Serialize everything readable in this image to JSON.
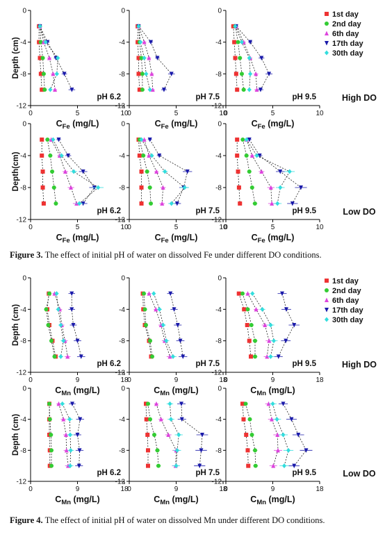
{
  "figures": [
    {
      "id": "fig3",
      "caption_label": "Figure 3.",
      "caption_text": " The effect of initial pH of water on dissolved Fe under different DO conditions.",
      "xlabel_main": "C",
      "xlabel_sub": "Fe",
      "xlabel_unit": " (mg/L)",
      "ylabels": [
        "Depth (cm)",
        "Depth(cm)"
      ],
      "yticks": [
        "0",
        "-4",
        "-8",
        "-12"
      ],
      "xticks": [
        "0",
        "5",
        "10"
      ],
      "row_labels": [
        "High DO",
        "Low DO"
      ],
      "ph_labels": [
        "pH 6.2",
        "pH 7.5",
        "pH 9.5"
      ]
    },
    {
      "id": "fig4",
      "caption_label": "Figure 4.",
      "caption_text": " The effect of initial pH of water on dissolved Mn under different DO conditions.",
      "xlabel_main": "C",
      "xlabel_sub": "Mn",
      "xlabel_unit": " (mg/L)",
      "ylabels": [
        "Depth (cm)",
        "Depth (cm)"
      ],
      "yticks": [
        "0",
        "-4",
        "-8",
        "-12"
      ],
      "xticks": [
        "0",
        "9",
        "18"
      ],
      "row_labels": [
        "High DO",
        "Low DO"
      ],
      "ph_labels": [
        "pH 6.2",
        "pH 7.5",
        "pH 9.5"
      ]
    }
  ],
  "legend": [
    {
      "name": "1st day",
      "color": "#ee3333",
      "marker": "square"
    },
    {
      "name": "2nd day",
      "color": "#33cc33",
      "marker": "circle"
    },
    {
      "name": "6th day",
      "color": "#dd44dd",
      "marker": "triangle-up"
    },
    {
      "name": "17th day",
      "color": "#1a1aaa",
      "marker": "triangle-down"
    },
    {
      "name": "30th day",
      "color": "#33dddd",
      "marker": "diamond"
    }
  ],
  "chart_data": [
    {
      "type": "scatter",
      "figure": "fig3",
      "panel": "pH 6.2",
      "condition": "High DO",
      "xlim": [
        0,
        10
      ],
      "ylim": [
        -12,
        0
      ],
      "depth": [
        -2,
        -4,
        -6,
        -8,
        -10
      ],
      "series": [
        {
          "name": "1st day",
          "values": [
            0.9,
            0.9,
            1.0,
            1.1,
            1.2
          ]
        },
        {
          "name": "2nd day",
          "values": [
            1.0,
            1.1,
            1.3,
            1.4,
            1.5
          ]
        },
        {
          "name": "6th day",
          "values": [
            1.0,
            1.4,
            2.0,
            2.4,
            2.6
          ]
        },
        {
          "name": "17th day",
          "values": [
            1.0,
            1.8,
            2.7,
            3.6,
            4.4
          ]
        },
        {
          "name": "30th day",
          "values": [
            1.0,
            1.6,
            2.9,
            2.8,
            2.1
          ]
        }
      ]
    },
    {
      "type": "scatter",
      "figure": "fig3",
      "panel": "pH 7.5",
      "condition": "High DO",
      "xlim": [
        0,
        10
      ],
      "ylim": [
        -12,
        0
      ],
      "depth": [
        -2,
        -4,
        -6,
        -8,
        -10
      ],
      "series": [
        {
          "name": "1st day",
          "values": [
            0.9,
            0.9,
            1.0,
            1.0,
            1.1
          ]
        },
        {
          "name": "2nd day",
          "values": [
            1.0,
            1.1,
            1.3,
            1.4,
            1.4
          ]
        },
        {
          "name": "6th day",
          "values": [
            1.0,
            1.6,
            2.1,
            2.4,
            2.5
          ]
        },
        {
          "name": "17th day",
          "values": [
            1.0,
            2.3,
            3.0,
            4.5,
            3.7
          ]
        },
        {
          "name": "30th day",
          "values": [
            1.0,
            1.2,
            1.6,
            1.8,
            2.2
          ]
        }
      ]
    },
    {
      "type": "scatter",
      "figure": "fig3",
      "panel": "pH 9.5",
      "condition": "High DO",
      "xlim": [
        0,
        10
      ],
      "ylim": [
        -12,
        0
      ],
      "depth": [
        -2,
        -4,
        -6,
        -8,
        -10
      ],
      "series": [
        {
          "name": "1st day",
          "values": [
            0.8,
            0.9,
            1.0,
            1.1,
            1.2
          ]
        },
        {
          "name": "2nd day",
          "values": [
            1.0,
            1.3,
            1.5,
            1.7,
            1.9
          ]
        },
        {
          "name": "6th day",
          "values": [
            1.1,
            1.9,
            2.6,
            3.2,
            3.3
          ]
        },
        {
          "name": "17th day",
          "values": [
            1.1,
            2.6,
            3.8,
            4.6,
            3.7
          ]
        },
        {
          "name": "30th day",
          "values": [
            1.0,
            1.7,
            2.5,
            2.6,
            2.5
          ]
        }
      ]
    },
    {
      "type": "scatter",
      "figure": "fig3",
      "panel": "pH 6.2",
      "condition": "Low DO",
      "xlim": [
        0,
        10
      ],
      "ylim": [
        -12,
        0
      ],
      "depth": [
        -2,
        -4,
        -6,
        -8,
        -10
      ],
      "series": [
        {
          "name": "1st day",
          "values": [
            1.2,
            1.2,
            1.3,
            1.3,
            1.4
          ]
        },
        {
          "name": "2nd day",
          "values": [
            1.8,
            2.1,
            2.3,
            2.5,
            2.7
          ]
        },
        {
          "name": "6th day",
          "values": [
            2.2,
            3.1,
            3.7,
            4.3,
            4.9
          ]
        },
        {
          "name": "17th day",
          "values": [
            3.0,
            4.0,
            5.6,
            6.8,
            5.6
          ]
        },
        {
          "name": "30th day",
          "values": [
            2.4,
            3.3,
            4.6,
            7.2,
            5.2
          ]
        }
      ]
    },
    {
      "type": "scatter",
      "figure": "fig3",
      "panel": "pH 7.5",
      "condition": "Low DO",
      "xlim": [
        0,
        10
      ],
      "ylim": [
        -12,
        0
      ],
      "depth": [
        -2,
        -4,
        -6,
        -8,
        -10
      ],
      "series": [
        {
          "name": "1st day",
          "values": [
            1.0,
            1.1,
            1.3,
            1.3,
            1.3
          ]
        },
        {
          "name": "2nd day",
          "values": [
            1.1,
            1.5,
            1.9,
            2.2,
            2.3
          ]
        },
        {
          "name": "6th day",
          "values": [
            1.6,
            2.1,
            2.9,
            3.6,
            3.5
          ]
        },
        {
          "name": "17th day",
          "values": [
            2.2,
            3.2,
            6.2,
            5.8,
            5.1
          ]
        },
        {
          "name": "30th day",
          "values": [
            1.3,
            2.4,
            3.8,
            5.9,
            4.5
          ]
        }
      ]
    },
    {
      "type": "scatter",
      "figure": "fig3",
      "panel": "pH 9.5",
      "condition": "Low DO",
      "xlim": [
        0,
        10
      ],
      "ylim": [
        -12,
        0
      ],
      "depth": [
        -2,
        -4,
        -6,
        -8,
        -10
      ],
      "series": [
        {
          "name": "1st day",
          "values": [
            1.2,
            1.2,
            1.3,
            1.4,
            1.5
          ]
        },
        {
          "name": "2nd day",
          "values": [
            1.8,
            2.2,
            2.5,
            2.8,
            3.1
          ]
        },
        {
          "name": "6th day",
          "values": [
            2.2,
            2.8,
            3.8,
            4.8,
            4.9
          ]
        },
        {
          "name": "17th day",
          "values": [
            2.5,
            3.6,
            5.8,
            8.0,
            7.1
          ]
        },
        {
          "name": "30th day",
          "values": [
            2.2,
            3.3,
            6.8,
            5.8,
            5.5
          ]
        }
      ]
    },
    {
      "type": "scatter",
      "figure": "fig4",
      "panel": "pH 6.2",
      "condition": "High DO",
      "xlim": [
        0,
        18
      ],
      "ylim": [
        -12,
        0
      ],
      "depth": [
        -2,
        -4,
        -6,
        -8,
        -10
      ],
      "series": [
        {
          "name": "1st day",
          "values": [
            3.5,
            3.2,
            3.6,
            4.2,
            4.8
          ]
        },
        {
          "name": "2nd day",
          "values": [
            3.6,
            3.0,
            3.4,
            4.0,
            4.6
          ]
        },
        {
          "name": "6th day",
          "values": [
            4.6,
            5.6,
            6.0,
            6.6,
            7.1
          ]
        },
        {
          "name": "17th day",
          "values": [
            7.9,
            7.9,
            8.2,
            9.0,
            9.7
          ]
        },
        {
          "name": "30th day",
          "values": [
            5.0,
            5.3,
            5.8,
            6.3,
            5.8
          ]
        }
      ]
    },
    {
      "type": "scatter",
      "figure": "fig4",
      "panel": "pH 7.5",
      "condition": "High DO",
      "xlim": [
        0,
        18
      ],
      "ylim": [
        -12,
        0
      ],
      "depth": [
        -2,
        -4,
        -6,
        -8,
        -10
      ],
      "series": [
        {
          "name": "1st day",
          "values": [
            2.6,
            2.7,
            3.0,
            3.8,
            4.2
          ]
        },
        {
          "name": "2nd day",
          "values": [
            2.8,
            3.0,
            3.2,
            4.0,
            4.4
          ]
        },
        {
          "name": "6th day",
          "values": [
            3.8,
            5.1,
            6.1,
            6.8,
            7.8
          ]
        },
        {
          "name": "17th day",
          "values": [
            7.9,
            8.6,
            9.3,
            9.8,
            10.3
          ]
        },
        {
          "name": "30th day",
          "values": [
            4.7,
            5.8,
            6.5,
            7.1,
            8.4
          ]
        }
      ]
    },
    {
      "type": "scatter",
      "figure": "fig4",
      "panel": "pH 9.5",
      "condition": "High DO",
      "xlim": [
        0,
        18
      ],
      "ylim": [
        -12,
        0
      ],
      "depth": [
        -2,
        -4,
        -6,
        -8,
        -10
      ],
      "series": [
        {
          "name": "1st day",
          "values": [
            2.5,
            3.5,
            4.1,
            4.5,
            4.8
          ]
        },
        {
          "name": "2nd day",
          "values": [
            3.2,
            4.2,
            4.9,
            5.6,
            5.6
          ]
        },
        {
          "name": "6th day",
          "values": [
            4.2,
            5.8,
            7.5,
            8.3,
            7.9
          ]
        },
        {
          "name": "17th day",
          "values": [
            10.8,
            11.6,
            13.1,
            11.5,
            10.1
          ]
        },
        {
          "name": "30th day",
          "values": [
            5.1,
            7.0,
            8.6,
            9.2,
            8.6
          ]
        }
      ]
    },
    {
      "type": "scatter",
      "figure": "fig4",
      "panel": "pH 6.2",
      "condition": "Low DO",
      "xlim": [
        0,
        18
      ],
      "ylim": [
        -12,
        0
      ],
      "depth": [
        -2,
        -4,
        -6,
        -8,
        -10
      ],
      "series": [
        {
          "name": "1st day",
          "values": [
            3.6,
            3.6,
            3.6,
            3.7,
            3.7
          ]
        },
        {
          "name": "2nd day",
          "values": [
            3.6,
            3.7,
            3.9,
            4.0,
            4.0
          ]
        },
        {
          "name": "6th day",
          "values": [
            5.4,
            6.3,
            6.8,
            6.9,
            7.2
          ]
        },
        {
          "name": "17th day",
          "values": [
            8.0,
            9.5,
            9.0,
            9.4,
            9.3
          ]
        },
        {
          "name": "30th day",
          "values": [
            6.1,
            7.5,
            7.6,
            7.7,
            7.6
          ]
        }
      ]
    },
    {
      "type": "scatter",
      "figure": "fig4",
      "panel": "pH 7.5",
      "condition": "Low DO",
      "xlim": [
        0,
        18
      ],
      "ylim": [
        -12,
        0
      ],
      "depth": [
        -2,
        -4,
        -6,
        -8,
        -10
      ],
      "series": [
        {
          "name": "1st day",
          "values": [
            3.2,
            3.3,
            3.5,
            3.6,
            3.6
          ]
        },
        {
          "name": "2nd day",
          "values": [
            3.6,
            4.0,
            4.8,
            5.4,
            5.6
          ]
        },
        {
          "name": "6th day",
          "values": [
            5.2,
            6.1,
            7.5,
            9.0,
            8.9
          ]
        },
        {
          "name": "17th day",
          "values": [
            10.0,
            10.1,
            14.0,
            13.8,
            13.5
          ]
        },
        {
          "name": "30th day",
          "values": [
            7.8,
            8.0,
            9.5,
            9.2,
            9.0
          ]
        }
      ]
    },
    {
      "type": "scatter",
      "figure": "fig4",
      "panel": "pH 9.5",
      "condition": "Low DO",
      "xlim": [
        0,
        18
      ],
      "ylim": [
        -12,
        0
      ],
      "depth": [
        -2,
        -4,
        -6,
        -8,
        -10
      ],
      "series": [
        {
          "name": "1st day",
          "values": [
            3.2,
            3.4,
            3.9,
            4.2,
            4.3
          ]
        },
        {
          "name": "2nd day",
          "values": [
            3.8,
            4.6,
            5.0,
            5.6,
            5.7
          ]
        },
        {
          "name": "6th day",
          "values": [
            8.2,
            8.8,
            9.9,
            10.0,
            9.1
          ]
        },
        {
          "name": "17th day",
          "values": [
            11.0,
            12.6,
            13.9,
            15.4,
            13.1
          ]
        },
        {
          "name": "30th day",
          "values": [
            9.0,
            9.8,
            11.0,
            12.0,
            11.2
          ]
        }
      ]
    }
  ]
}
